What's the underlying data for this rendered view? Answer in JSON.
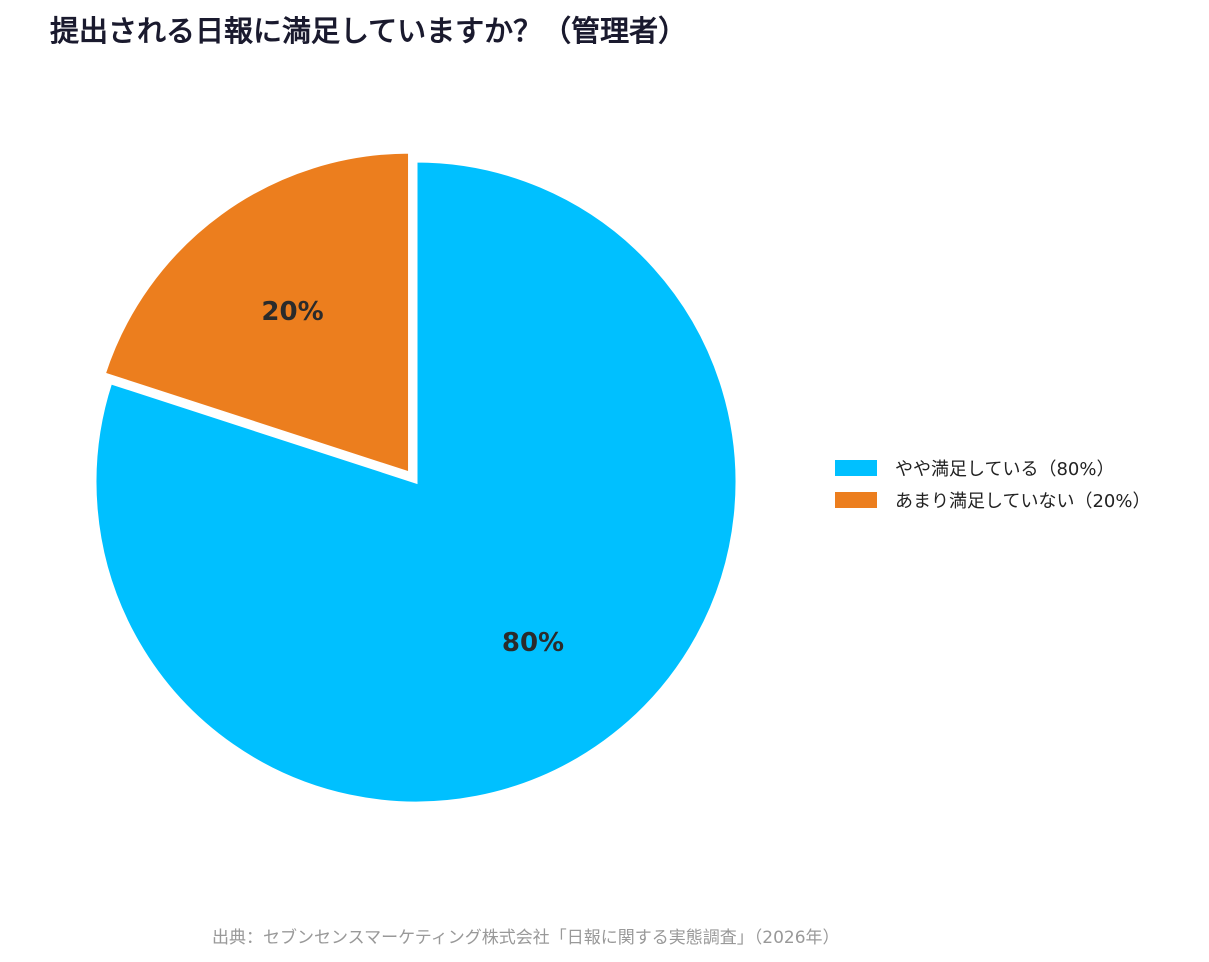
{
  "chart_data": {
    "type": "pie",
    "title": "提出される日報に満足していますか？（管理者）",
    "slices": [
      {
        "name": "やや満足している",
        "value": 80,
        "label": "80%",
        "legend": "やや満足している（80%）",
        "color": "#00c0ff"
      },
      {
        "name": "あまり満足していない",
        "value": 20,
        "label": "20%",
        "legend": "あまり満足していない（20%）",
        "color": "#ec7e1e"
      }
    ],
    "start": "12 o'clock",
    "direction": "clockwise",
    "exploded": "あまり満足していない",
    "legend_position": "right",
    "source": "出典：セブンセンスマーケティング株式会社「日報に関する実態調査」（2026年）"
  }
}
